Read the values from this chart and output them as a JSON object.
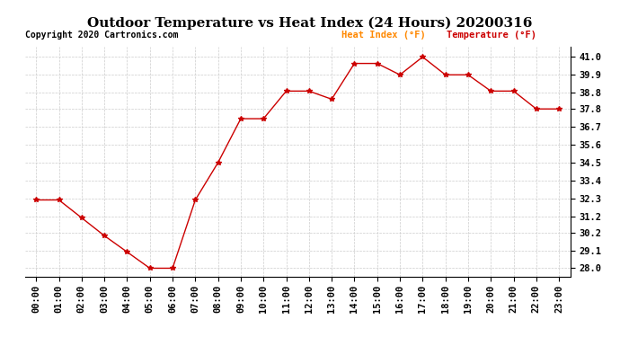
{
  "title": "Outdoor Temperature vs Heat Index (24 Hours) 20200316",
  "copyright": "Copyright 2020 Cartronics.com",
  "legend_heat": "Heat Index (°F)",
  "legend_temp": "Temperature (°F)",
  "x_labels": [
    "00:00",
    "01:00",
    "02:00",
    "03:00",
    "04:00",
    "05:00",
    "06:00",
    "07:00",
    "08:00",
    "09:00",
    "10:00",
    "11:00",
    "12:00",
    "13:00",
    "14:00",
    "15:00",
    "16:00",
    "17:00",
    "18:00",
    "19:00",
    "20:00",
    "21:00",
    "22:00",
    "23:00"
  ],
  "y_values": [
    32.2,
    32.2,
    31.1,
    30.0,
    29.0,
    28.0,
    28.0,
    32.2,
    34.5,
    37.2,
    37.2,
    38.9,
    38.9,
    38.4,
    40.6,
    40.6,
    39.9,
    41.0,
    39.9,
    39.9,
    38.9,
    38.9,
    37.8,
    37.8
  ],
  "line_color": "#cc0000",
  "marker": "*",
  "ylim_min": 27.5,
  "ylim_max": 41.6,
  "y_ticks": [
    28.0,
    29.1,
    30.2,
    31.2,
    32.3,
    33.4,
    34.5,
    35.6,
    36.7,
    37.8,
    38.8,
    39.9,
    41.0
  ],
  "background_color": "#ffffff",
  "grid_color": "#cccccc",
  "title_fontsize": 11,
  "tick_fontsize": 7.5,
  "copyright_fontsize": 7,
  "legend_fontsize": 7.5,
  "legend_color_heat": "#ff8800",
  "legend_color_temp": "#cc0000"
}
